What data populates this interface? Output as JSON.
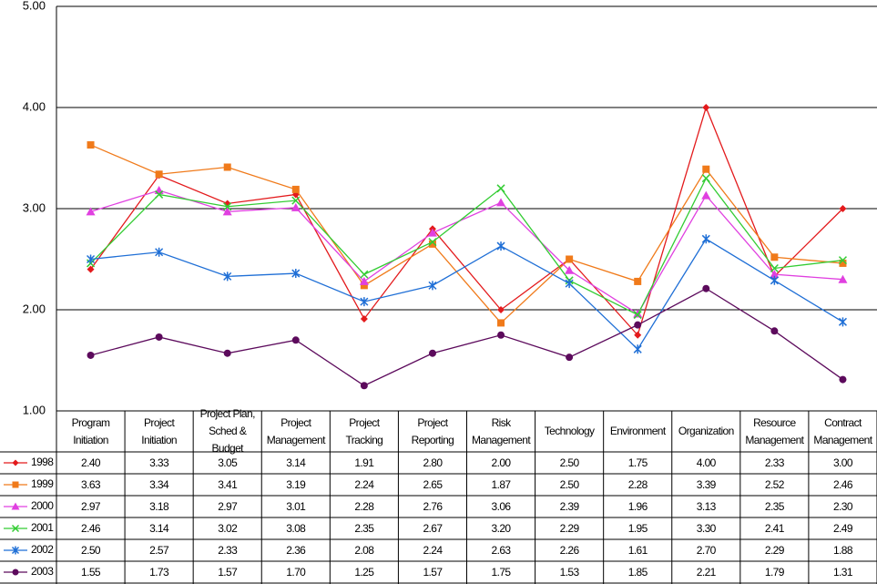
{
  "chart_data": {
    "type": "line",
    "categories": [
      "Program Initiation",
      "Project Initiation",
      "Project Plan, Sched & Budget",
      "Project Management",
      "Project Tracking",
      "Project Reporting",
      "Risk Management",
      "Technology",
      "Environment",
      "Organization",
      "Resource Management",
      "Contract Management"
    ],
    "ylim": [
      1,
      5
    ],
    "yticks": [
      {
        "value": 1,
        "label": "1.00"
      },
      {
        "value": 2,
        "label": "2.00"
      },
      {
        "value": 3,
        "label": "3.00"
      },
      {
        "value": 4,
        "label": "4.00"
      },
      {
        "value": 5,
        "label": "5.00"
      }
    ],
    "grid": true,
    "series": [
      {
        "name": "1998",
        "color": "#e31a1c",
        "marker": "diamond",
        "values": [
          2.4,
          3.33,
          3.05,
          3.14,
          1.91,
          2.8,
          2.0,
          2.5,
          1.75,
          4.0,
          2.33,
          3.0
        ],
        "value_labels": [
          "2.40",
          "3.33",
          "3.05",
          "3.14",
          "1.91",
          "2.80",
          "2.00",
          "2.50",
          "1.75",
          "4.00",
          "2.33",
          "3.00"
        ]
      },
      {
        "name": "1999",
        "color": "#f07a1a",
        "marker": "square",
        "values": [
          3.63,
          3.34,
          3.41,
          3.19,
          2.24,
          2.65,
          1.87,
          2.5,
          2.28,
          3.39,
          2.52,
          2.46
        ],
        "value_labels": [
          "3.63",
          "3.34",
          "3.41",
          "3.19",
          "2.24",
          "2.65",
          "1.87",
          "2.50",
          "2.28",
          "3.39",
          "2.52",
          "2.46"
        ]
      },
      {
        "name": "2000",
        "color": "#e040e0",
        "marker": "triangle",
        "values": [
          2.97,
          3.18,
          2.97,
          3.01,
          2.28,
          2.76,
          3.06,
          2.39,
          1.96,
          3.13,
          2.35,
          2.3
        ],
        "value_labels": [
          "2.97",
          "3.18",
          "2.97",
          "3.01",
          "2.28",
          "2.76",
          "3.06",
          "2.39",
          "1.96",
          "3.13",
          "2.35",
          "2.30"
        ]
      },
      {
        "name": "2001",
        "color": "#33cc33",
        "marker": "x",
        "values": [
          2.46,
          3.14,
          3.02,
          3.08,
          2.35,
          2.67,
          3.2,
          2.29,
          1.95,
          3.3,
          2.41,
          2.49
        ],
        "value_labels": [
          "2.46",
          "3.14",
          "3.02",
          "3.08",
          "2.35",
          "2.67",
          "3.20",
          "2.29",
          "1.95",
          "3.30",
          "2.41",
          "2.49"
        ]
      },
      {
        "name": "2002",
        "color": "#1f6fd6",
        "marker": "asterisk",
        "values": [
          2.5,
          2.57,
          2.33,
          2.36,
          2.08,
          2.24,
          2.63,
          2.26,
          1.61,
          2.7,
          2.29,
          1.88
        ],
        "value_labels": [
          "2.50",
          "2.57",
          "2.33",
          "2.36",
          "2.08",
          "2.24",
          "2.63",
          "2.26",
          "1.61",
          "2.70",
          "2.29",
          "1.88"
        ]
      },
      {
        "name": "2003",
        "color": "#5c0a5c",
        "marker": "circle",
        "values": [
          1.55,
          1.73,
          1.57,
          1.7,
          1.25,
          1.57,
          1.75,
          1.53,
          1.85,
          2.21,
          1.79,
          1.31
        ],
        "value_labels": [
          "1.55",
          "1.73",
          "1.57",
          "1.70",
          "1.25",
          "1.57",
          "1.75",
          "1.53",
          "1.85",
          "2.21",
          "1.79",
          "1.31"
        ]
      }
    ]
  }
}
